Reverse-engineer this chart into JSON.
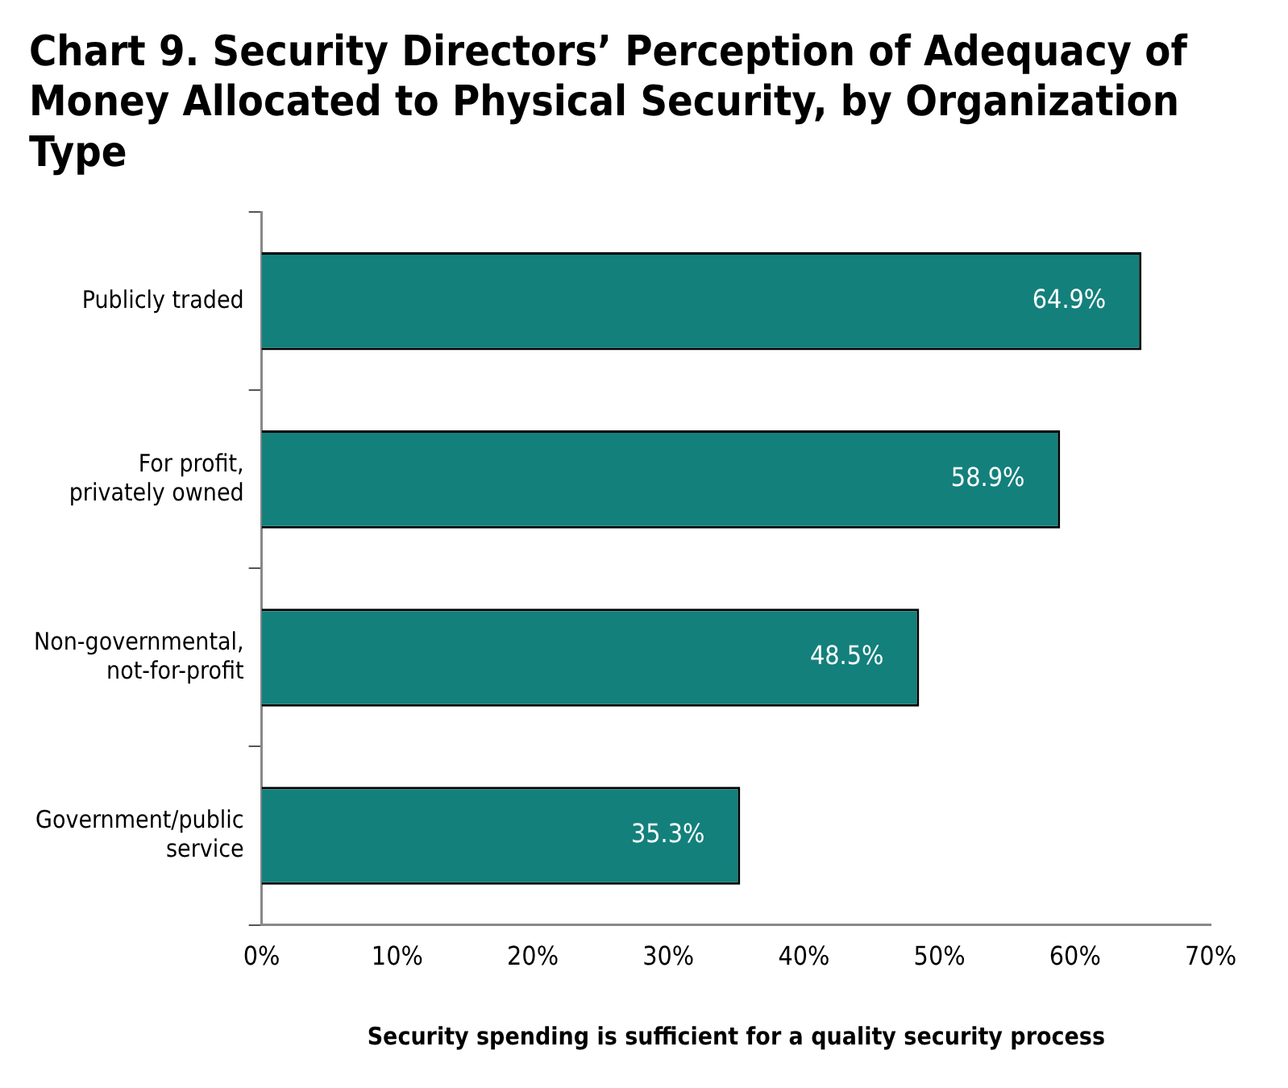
{
  "chart_data": {
    "type": "bar",
    "orientation": "horizontal",
    "title": "Chart 9. Security Directors’ Perception of Adequacy of Money Allocated to Physical Security, by Organization Type",
    "xlabel": "Security spending is sufficient for a quality security process",
    "categories": [
      "Publicly traded",
      "For profit, privately owned",
      "Non-governmental, not-for-profit",
      "Government/public service"
    ],
    "values": [
      64.9,
      58.9,
      48.5,
      35.3
    ],
    "value_labels": [
      "64.9%",
      "58.9%",
      "48.5%",
      "35.3%"
    ],
    "color": "#13807c",
    "xlim": [
      0,
      70
    ],
    "xticks": [
      {
        "value": 0,
        "label": "0%"
      },
      {
        "value": 10,
        "label": "10%"
      },
      {
        "value": 20,
        "label": "20%"
      },
      {
        "value": 30,
        "label": "30%"
      },
      {
        "value": 40,
        "label": "40%"
      },
      {
        "value": 50,
        "label": "50%"
      },
      {
        "value": 60,
        "label": "60%"
      },
      {
        "value": 70,
        "label": "70%"
      }
    ],
    "grid": false,
    "legend": false
  }
}
